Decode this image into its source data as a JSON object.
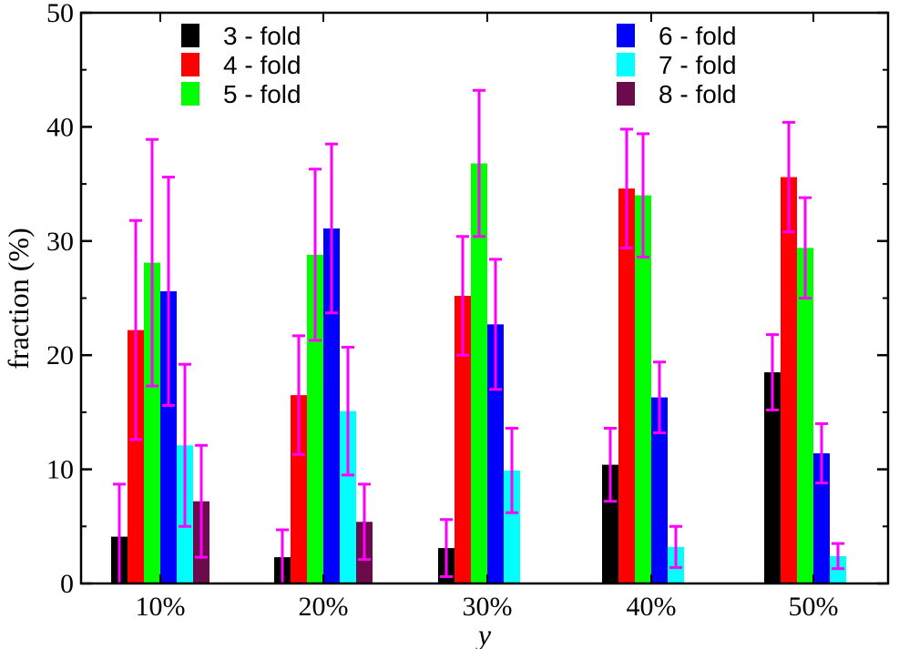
{
  "chart_data": {
    "type": "bar",
    "xlabel": "y",
    "ylabel": "fraction (%)",
    "ylim": [
      0,
      50
    ],
    "yticks": [
      0,
      10,
      20,
      30,
      40,
      50
    ],
    "categories": [
      "10%",
      "20%",
      "30%",
      "40%",
      "50%"
    ],
    "error_bar_color": "#ff00ff",
    "grid": false,
    "series": [
      {
        "name": "3 - fold",
        "color": "#000000",
        "values": [
          4.1,
          2.3,
          3.1,
          10.4,
          18.5
        ],
        "errors": [
          4.6,
          2.4,
          2.5,
          3.2,
          3.3
        ]
      },
      {
        "name": "4 - fold",
        "color": "#ff0000",
        "values": [
          22.2,
          16.5,
          25.2,
          34.6,
          35.6
        ],
        "errors": [
          9.6,
          5.2,
          5.2,
          5.2,
          4.8
        ]
      },
      {
        "name": "5 - fold",
        "color": "#00ff00",
        "values": [
          28.1,
          28.8,
          36.8,
          34.0,
          29.4
        ],
        "errors": [
          10.8,
          7.5,
          6.4,
          5.4,
          4.4
        ]
      },
      {
        "name": "6 - fold",
        "color": "#0000ff",
        "values": [
          25.6,
          31.1,
          22.7,
          16.3,
          11.4
        ],
        "errors": [
          10.0,
          7.4,
          5.7,
          3.1,
          2.6
        ]
      },
      {
        "name": "7 - fold",
        "color": "#00ffff",
        "values": [
          12.1,
          15.1,
          9.9,
          3.2,
          2.4
        ],
        "errors": [
          7.1,
          5.6,
          3.7,
          1.8,
          1.1
        ]
      },
      {
        "name": "8 - fold",
        "color": "#6b0b4c",
        "values": [
          7.2,
          5.4,
          null,
          null,
          null
        ],
        "errors": [
          4.9,
          3.3,
          null,
          null,
          null
        ]
      }
    ]
  }
}
